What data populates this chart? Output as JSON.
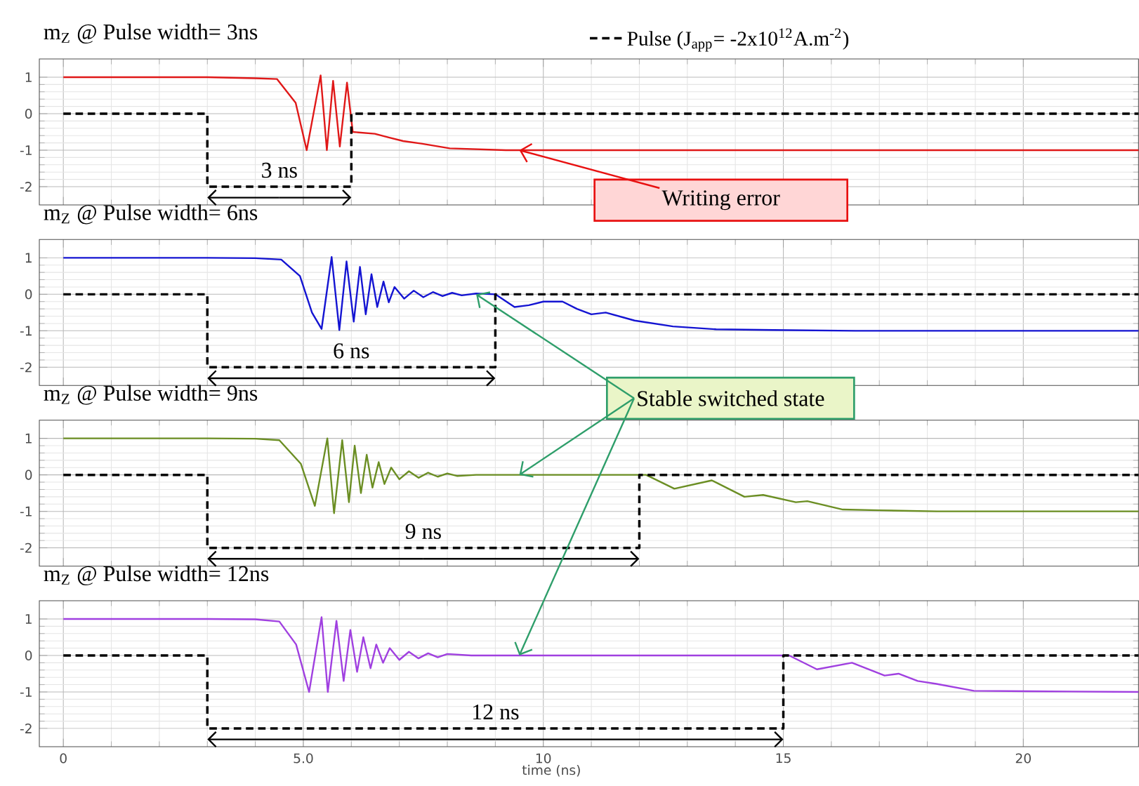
{
  "chart_data": [
    {
      "type": "line",
      "title": "m$_{Z}$ @ Pulse width= 3ns",
      "xlim": [
        -0.5,
        22.4
      ],
      "ylim": [
        -2.5,
        1.5
      ],
      "xticks": [
        0,
        5,
        10,
        15,
        20
      ],
      "yticks": [
        -2,
        -1,
        0,
        1
      ],
      "grid": true,
      "tick_labels": "y",
      "legend": "top",
      "series": [
        {
          "color": "#e01818",
          "x": [
            0,
            3,
            4.0,
            4.45,
            4.84,
            5.07,
            5.36,
            5.49,
            5.62,
            5.76,
            5.91,
            6.03,
            6.49,
            6.78,
            7.08,
            7.46,
            8.05,
            9.22,
            22.4
          ],
          "values": [
            1.0,
            1.0,
            0.97,
            0.95,
            0.3,
            -1.0,
            1.05,
            -1.0,
            0.9,
            -0.9,
            0.85,
            -0.5,
            -0.55,
            -0.65,
            -0.75,
            -0.82,
            -0.95,
            -1.0,
            -1.0
          ]
        },
        {
          "name": "Pulse (J$_{app}$= -2x10$^{12}$A.m$^{-2}$)",
          "color": "#000000",
          "line_style": "dashed",
          "x": [
            0,
            3,
            3,
            6,
            6,
            22.4
          ],
          "values": [
            0,
            0,
            -2,
            -2,
            0,
            0
          ]
        }
      ],
      "annotations": [
        "3 ns",
        {
          "text": "Writing error",
          "x": 9.5,
          "y": -1
        }
      ]
    },
    {
      "type": "line",
      "title": "m$_{Z}$ @ Pulse width= 6ns",
      "xlim": [
        -0.5,
        22.4
      ],
      "ylim": [
        -2.5,
        1.5
      ],
      "xticks": [
        0,
        5,
        10,
        15,
        20
      ],
      "yticks": [
        -2,
        -1,
        0,
        1
      ],
      "grid": true,
      "tick_labels": "y",
      "series": [
        {
          "color": "#1414d2",
          "x": [
            0,
            3,
            4.0,
            4.54,
            4.93,
            5.18,
            5.38,
            5.59,
            5.75,
            5.9,
            6.05,
            6.18,
            6.3,
            6.42,
            6.54,
            6.67,
            6.78,
            6.9,
            7.1,
            7.3,
            7.5,
            7.7,
            7.9,
            8.1,
            8.3,
            8.6,
            9.0,
            9.4,
            9.7,
            10.0,
            10.4,
            10.7,
            11.0,
            11.3,
            11.9,
            12.7,
            13.6,
            14.8,
            16.5,
            22.4
          ],
          "values": [
            1.0,
            1.0,
            0.99,
            0.95,
            0.5,
            -0.5,
            -0.95,
            1.02,
            -0.98,
            0.9,
            -0.75,
            0.75,
            -0.55,
            0.55,
            -0.35,
            0.35,
            -0.22,
            0.2,
            -0.12,
            0.1,
            -0.08,
            0.06,
            -0.05,
            0.04,
            -0.03,
            0.02,
            0.0,
            -0.35,
            -0.3,
            -0.2,
            -0.2,
            -0.4,
            -0.55,
            -0.5,
            -0.72,
            -0.88,
            -0.96,
            -0.98,
            -1.0,
            -1.0
          ]
        },
        {
          "color": "#000000",
          "line_style": "dashed",
          "x": [
            0,
            3,
            3,
            9,
            9,
            22.4
          ],
          "values": [
            0,
            0,
            -2,
            -2,
            0,
            0
          ]
        }
      ],
      "annotations": [
        "6 ns"
      ]
    },
    {
      "type": "line",
      "title": "m$_{Z}$ @ Pulse width= 9ns",
      "xlim": [
        -0.5,
        22.4
      ],
      "ylim": [
        -2.5,
        1.5
      ],
      "xticks": [
        0,
        5,
        10,
        15,
        20
      ],
      "yticks": [
        -2,
        -1,
        0,
        1
      ],
      "grid": true,
      "tick_labels": "y",
      "series": [
        {
          "color": "#6b8e23",
          "x": [
            0,
            3,
            4.0,
            4.5,
            4.95,
            5.24,
            5.5,
            5.64,
            5.81,
            5.95,
            6.07,
            6.2,
            6.32,
            6.44,
            6.57,
            6.69,
            6.83,
            7.0,
            7.2,
            7.4,
            7.6,
            7.8,
            8.0,
            8.2,
            8.6,
            12.0,
            12.14,
            12.73,
            13.51,
            14.19,
            14.58,
            15.26,
            15.5,
            16.24,
            17.0,
            18.2,
            22.4
          ],
          "values": [
            1.0,
            1.0,
            0.99,
            0.95,
            0.3,
            -0.85,
            1.0,
            -1.05,
            0.95,
            -0.75,
            0.8,
            -0.5,
            0.55,
            -0.35,
            0.35,
            -0.25,
            0.2,
            -0.12,
            0.1,
            -0.08,
            0.06,
            -0.05,
            0.04,
            -0.03,
            0.0,
            0.0,
            0.0,
            -0.38,
            -0.15,
            -0.6,
            -0.55,
            -0.75,
            -0.72,
            -0.95,
            -0.97,
            -1.0,
            -1.0
          ]
        },
        {
          "color": "#000000",
          "line_style": "dashed",
          "x": [
            0,
            3,
            3,
            12,
            12,
            22.4
          ],
          "values": [
            0,
            0,
            -2,
            -2,
            0,
            0
          ]
        }
      ],
      "annotations": [
        "9 ns",
        {
          "text": "Stable switched state",
          "x": 9.5,
          "y": 0
        }
      ]
    },
    {
      "type": "line",
      "title": "m$_{Z}$ @ Pulse width= 12ns",
      "xlabel": "time (ns)",
      "xlim": [
        -0.5,
        22.4
      ],
      "ylim": [
        -2.5,
        1.5
      ],
      "xticks": [
        0,
        {
          "value": 5,
          "label": "5.0"
        },
        10,
        15,
        20
      ],
      "yticks": [
        -2,
        -1,
        0,
        1
      ],
      "grid": true,
      "series": [
        {
          "color": "#a040e0",
          "x": [
            0,
            3,
            4.0,
            4.5,
            4.85,
            5.12,
            5.38,
            5.51,
            5.69,
            5.84,
            5.98,
            6.12,
            6.25,
            6.4,
            6.52,
            6.66,
            6.8,
            7.0,
            7.2,
            7.4,
            7.6,
            7.8,
            8.0,
            8.5,
            15.12,
            15.7,
            16.43,
            17.11,
            17.4,
            17.8,
            18.19,
            18.97,
            20.1,
            22.4
          ],
          "values": [
            1.0,
            1.0,
            0.99,
            0.93,
            0.3,
            -1.0,
            1.05,
            -1.0,
            0.95,
            -0.7,
            0.7,
            -0.45,
            0.5,
            -0.35,
            0.3,
            -0.2,
            0.2,
            -0.12,
            0.1,
            -0.08,
            0.06,
            -0.05,
            0.04,
            0.0,
            0.0,
            -0.38,
            -0.2,
            -0.55,
            -0.5,
            -0.7,
            -0.78,
            -0.97,
            -0.98,
            -1.0
          ]
        },
        {
          "color": "#000000",
          "line_style": "dashed",
          "x": [
            0,
            3,
            3,
            15,
            15,
            22.4
          ],
          "values": [
            0,
            0,
            -2,
            -2,
            0,
            0
          ]
        }
      ],
      "annotations": [
        "12 ns"
      ]
    }
  ]
}
